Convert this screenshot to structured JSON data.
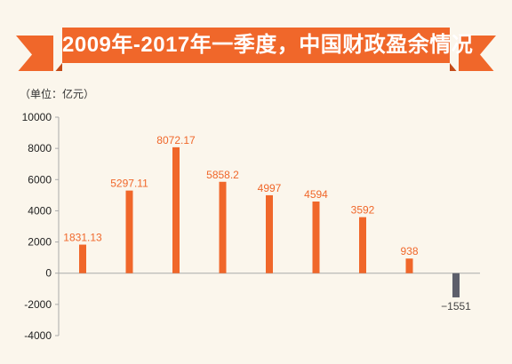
{
  "title": "2009年-2017年一季度，中国财政盈余情况",
  "colors": {
    "banner": "#f0672a",
    "banner_fold": "#c44b18",
    "positive_bar": "#f0672a",
    "negative_bar": "#5d5f6b",
    "axis": "#aaaaaa",
    "background": "#fbf6ec"
  },
  "chart_data": {
    "type": "bar",
    "title": "2009年-2017年一季度，中国财政盈余情况",
    "ylabel": "（单位：亿元）",
    "xlabel": "",
    "ylim": [
      -4000,
      10000
    ],
    "yticks": [
      "10000",
      "8000",
      "6000",
      "4000",
      "2000",
      "0",
      "-2000",
      "-4000"
    ],
    "values": [
      1831.13,
      5297.11,
      8072.17,
      5858.2,
      4997,
      4594,
      3592,
      938,
      -1551
    ],
    "value_labels": [
      "1831.13",
      "5297.11",
      "8072.17",
      "5858.2",
      "4997",
      "4594",
      "3592",
      "938",
      "−1551"
    ],
    "grid": false
  }
}
